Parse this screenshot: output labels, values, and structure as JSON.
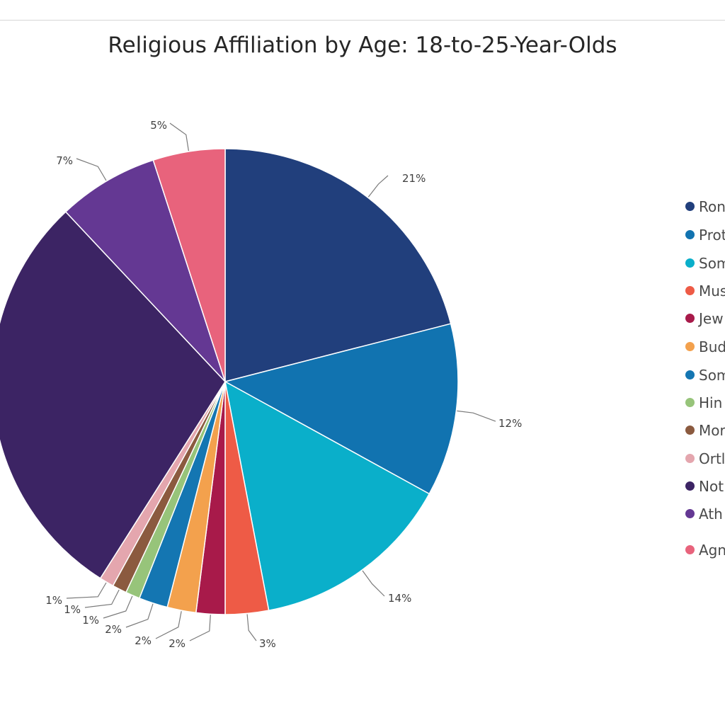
{
  "chart_data": {
    "type": "pie",
    "title": "Religious Affiliation by Age: 18-to-25-Year-Olds",
    "legend_position": "right",
    "slices": [
      {
        "label": "Ron",
        "value": 21,
        "data_label": "21%",
        "color": "#213f7c"
      },
      {
        "label": "Prot",
        "value": 12,
        "data_label": "12%",
        "color": "#1173b0"
      },
      {
        "label": "Som",
        "value": 14,
        "data_label": "14%",
        "color": "#0aafca"
      },
      {
        "label": "Mus",
        "value": 3,
        "data_label": "3%",
        "color": "#ee5b46"
      },
      {
        "label": "Jew",
        "value": 2,
        "data_label": "2%",
        "color": "#a81a4a"
      },
      {
        "label": "Bud",
        "value": 2,
        "data_label": "2%",
        "color": "#f3a14d"
      },
      {
        "label": "Som",
        "value": 2,
        "data_label": "2%",
        "color": "#1476b2"
      },
      {
        "label": "Hin",
        "value": 1,
        "data_label": "1%",
        "color": "#97c47a"
      },
      {
        "label": "Mor",
        "value": 1,
        "data_label": "1%",
        "color": "#8b5a3f"
      },
      {
        "label": "Ortl",
        "value": 1,
        "data_label": "1%",
        "color": "#e4a6ae"
      },
      {
        "label": "Not",
        "value": 29,
        "data_label": "",
        "color": "#3c2464"
      },
      {
        "label": "Ath",
        "value": 7,
        "data_label": "7%",
        "color": "#643893"
      },
      {
        "label": "Agn",
        "value": 5,
        "data_label": "5%",
        "color": "#e8637c"
      }
    ]
  }
}
